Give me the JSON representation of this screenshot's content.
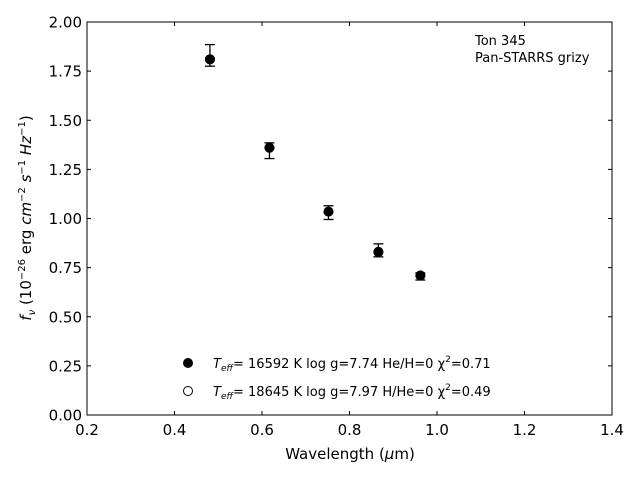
{
  "chart_data": {
    "type": "scatter",
    "xlabel": "Wavelength (μm)",
    "ylabel": "f_ν (10⁻²⁶ erg cm⁻² s⁻¹ Hz⁻¹)",
    "xlim": [
      0.2,
      1.4
    ],
    "ylim": [
      0.0,
      2.0
    ],
    "x_ticks": [
      0.2,
      0.4,
      0.6,
      0.8,
      1.0,
      1.2,
      1.4
    ],
    "x_tick_labels": [
      "0.2",
      "0.4",
      "0.6",
      "0.8",
      "1.0",
      "1.2",
      "1.4"
    ],
    "y_ticks": [
      0.0,
      0.25,
      0.5,
      0.75,
      1.0,
      1.25,
      1.5,
      1.75,
      2.0
    ],
    "y_tick_labels": [
      "0.00",
      "0.25",
      "0.50",
      "0.75",
      "1.00",
      "1.25",
      "1.50",
      "1.75",
      "2.00"
    ],
    "grid": false,
    "annotation": [
      "Ton 345",
      "Pan-STARRS grizy"
    ],
    "observed": {
      "x": [
        0.481,
        0.617,
        0.752,
        0.866,
        0.962
      ],
      "y": [
        1.83,
        1.345,
        1.03,
        0.838,
        0.705
      ],
      "yerr": [
        0.055,
        0.04,
        0.035,
        0.033,
        0.018
      ]
    },
    "models": [
      {
        "marker": "filled-circle",
        "label_parts": [
          "T",
          "eff",
          "= 16592 K  log g=7.74  He/H=0  χ",
          "2",
          "=0.71"
        ],
        "x": [
          0.481,
          0.617,
          0.752,
          0.866,
          0.962
        ],
        "y": [
          1.81,
          1.36,
          1.035,
          0.83,
          0.71
        ]
      },
      {
        "marker": "open-circle",
        "label_parts": [
          "T",
          "eff",
          "= 18645 K  log g=7.97  H/He=0  χ",
          "2",
          "=0.49"
        ],
        "x": [
          0.481,
          0.617,
          0.752,
          0.866,
          0.962
        ],
        "y": [
          1.81,
          1.36,
          1.035,
          0.83,
          0.71
        ]
      }
    ],
    "legend_location": "lower-center"
  }
}
